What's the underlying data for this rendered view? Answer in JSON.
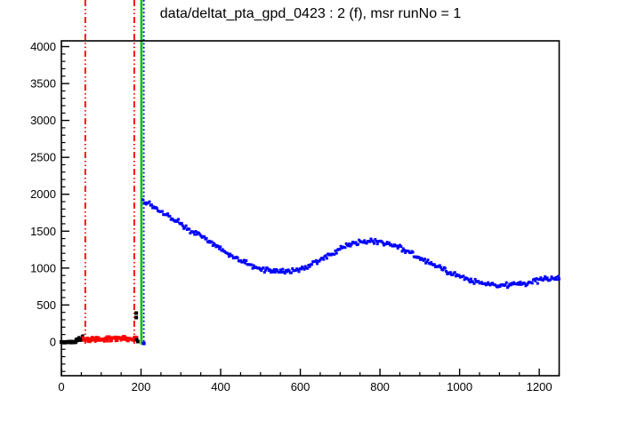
{
  "window": {
    "background_color": "#ffffff",
    "frame_color": "#000000"
  },
  "chart_data": {
    "type": "scatter",
    "title": "data/deltat_pta_gpd_0423 : 2 (f), msr runNo = 1",
    "xlabel": "",
    "ylabel": "",
    "xlim": [
      0,
      1250
    ],
    "ylim": [
      -458,
      4078
    ],
    "x_major_ticks": [
      0,
      200,
      400,
      600,
      800,
      1000,
      1200
    ],
    "x_minor_step": 50,
    "y_major_ticks": [
      0,
      500,
      1000,
      1500,
      2000,
      2500,
      3000,
      3500,
      4000
    ],
    "y_minor_step": 100,
    "y_minor_min": -400,
    "grid": false,
    "legend": "none",
    "marker_shape": "square",
    "series": [
      {
        "name": "black-histogram-start",
        "color": "#000000",
        "marker_px": 4,
        "noise": 8,
        "step": 1.0,
        "anchors": [
          [
            0,
            -5
          ],
          [
            36,
            -2
          ]
        ]
      },
      {
        "name": "black-histogram-rise",
        "color": "#000000",
        "marker_px": 3,
        "noise": 35,
        "step": 1.0,
        "anchors": [
          [
            36,
            18
          ],
          [
            56,
            55
          ]
        ]
      },
      {
        "name": "red-histogram-band",
        "color": "#ff0000",
        "marker_px": 3,
        "noise": 40,
        "step": 1.2,
        "anchors": [
          [
            54,
            40
          ],
          [
            120,
            42
          ],
          [
            190,
            45
          ]
        ]
      },
      {
        "name": "black-spike-points",
        "color": "#000000",
        "marker_px": 4,
        "points": [
          [
            188,
            330
          ],
          [
            188,
            390
          ],
          [
            189,
            30
          ],
          [
            192,
            5
          ]
        ]
      },
      {
        "name": "blue-histogram",
        "color": "#0000ff",
        "marker_px": 3,
        "noise": 42,
        "step": 2.7,
        "anchors": [
          [
            205,
            1900
          ],
          [
            215,
            1890
          ],
          [
            226,
            1845
          ],
          [
            248,
            1775
          ],
          [
            270,
            1690
          ],
          [
            293,
            1630
          ],
          [
            315,
            1530
          ],
          [
            338,
            1480
          ],
          [
            360,
            1410
          ],
          [
            382,
            1330
          ],
          [
            405,
            1240
          ],
          [
            427,
            1170
          ],
          [
            450,
            1100
          ],
          [
            472,
            1050
          ],
          [
            495,
            1000
          ],
          [
            517,
            965
          ],
          [
            540,
            950
          ],
          [
            561,
            950
          ],
          [
            584,
            965
          ],
          [
            606,
            1000
          ],
          [
            629,
            1050
          ],
          [
            651,
            1110
          ],
          [
            673,
            1180
          ],
          [
            696,
            1255
          ],
          [
            718,
            1305
          ],
          [
            740,
            1340
          ],
          [
            763,
            1365
          ],
          [
            785,
            1365
          ],
          [
            808,
            1350
          ],
          [
            830,
            1315
          ],
          [
            852,
            1265
          ],
          [
            875,
            1205
          ],
          [
            897,
            1145
          ],
          [
            920,
            1085
          ],
          [
            942,
            1025
          ],
          [
            964,
            965
          ],
          [
            986,
            915
          ],
          [
            1009,
            870
          ],
          [
            1031,
            830
          ],
          [
            1053,
            810
          ],
          [
            1076,
            785
          ],
          [
            1098,
            770
          ],
          [
            1120,
            770
          ],
          [
            1143,
            785
          ],
          [
            1165,
            795
          ],
          [
            1187,
            820
          ],
          [
            1210,
            845
          ],
          [
            1232,
            868
          ],
          [
            1250,
            880
          ]
        ]
      },
      {
        "name": "blue-low-bin-point",
        "color": "#0000ff",
        "marker_px": 4,
        "points": [
          [
            207,
            -20
          ]
        ]
      }
    ],
    "vlines": [
      {
        "name": "red-dashdot-line-1",
        "x": 60,
        "color": "#ff0000",
        "style": "dashdot",
        "width": 1.8
      },
      {
        "name": "red-dashdot-line-2",
        "x": 183,
        "color": "#ff0000",
        "style": "dashdot",
        "width": 1.8
      },
      {
        "name": "green-solid-line",
        "x": 201,
        "color": "#00c000",
        "style": "solid",
        "width": 2.6
      },
      {
        "name": "blue-dotted-line",
        "x": 207,
        "color": "#0000ff",
        "style": "dotted",
        "width": 1.8
      }
    ]
  }
}
